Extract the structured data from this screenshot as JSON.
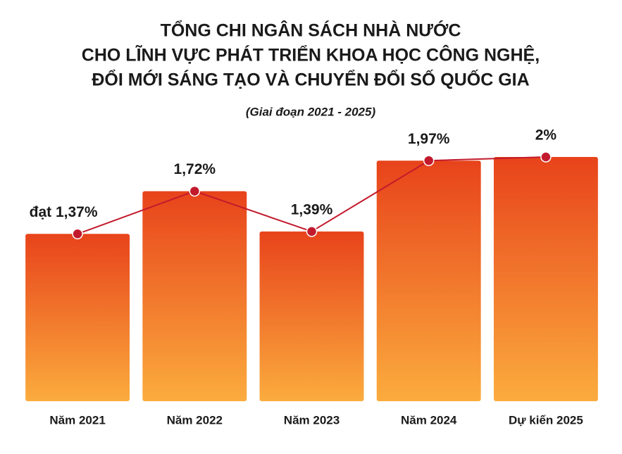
{
  "chart_data": {
    "type": "bar",
    "title": [
      "TỔNG CHI NGÂN SÁCH NHÀ NƯỚC",
      "CHO LĨNH VỰC PHÁT TRIỂN KHOA HỌC CÔNG NGHỆ,",
      "ĐỔI MỚI SÁNG TẠO VÀ CHUYỂN ĐỔI SỐ QUỐC GIA"
    ],
    "subtitle": "(Giai đoạn 2021 - 2025)",
    "categories": [
      "Năm 2021",
      "Năm 2022",
      "Năm 2023",
      "Năm 2024",
      "Dự kiến 2025"
    ],
    "values": [
      1.37,
      1.72,
      1.39,
      1.97,
      2
    ],
    "value_labels": [
      "đạt 1,37%",
      "1,72%",
      "1,39%",
      "1,97%",
      "2%"
    ],
    "color": "#ec5a1e",
    "line_color": "#c21a2c",
    "ylim": [
      0,
      2
    ]
  }
}
